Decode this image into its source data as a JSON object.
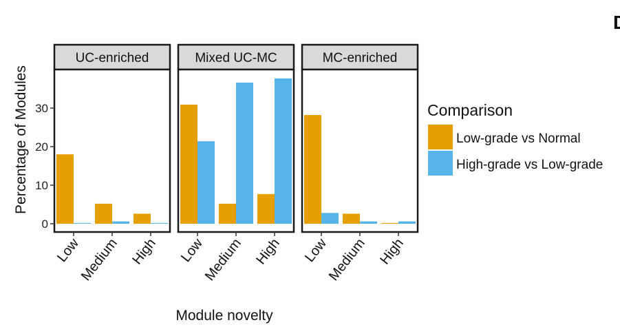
{
  "panel_letter": "D",
  "chart_data": {
    "type": "bar",
    "xlabel": "Module novelty",
    "ylabel": "Percentage of Modules",
    "ylim": [
      0,
      40
    ],
    "yticks": [
      0,
      10,
      20,
      30
    ],
    "categories": [
      "Low",
      "Medium",
      "High"
    ],
    "legend": {
      "title": "Comparison",
      "placement": "right",
      "entries": [
        "Low-grade vs Normal",
        "High-grade vs Low-grade"
      ]
    },
    "colors": [
      "#E69F00",
      "#56B4E9"
    ],
    "facets": [
      {
        "label": "UC-enriched",
        "series": [
          {
            "name": "Low-grade vs Normal",
            "values": [
              18,
              5.2,
              2.6
            ]
          },
          {
            "name": "High-grade vs Low-grade",
            "values": [
              0.2,
              0.6,
              0.2
            ]
          }
        ]
      },
      {
        "label": "Mixed UC-MC",
        "series": [
          {
            "name": "Low-grade vs Normal",
            "values": [
              30.9,
              5.2,
              7.7
            ]
          },
          {
            "name": "High-grade vs Low-grade",
            "values": [
              21.4,
              36.6,
              37.7
            ]
          }
        ]
      },
      {
        "label": "MC-enriched",
        "series": [
          {
            "name": "Low-grade vs Normal",
            "values": [
              28.2,
              2.6,
              0.2
            ]
          },
          {
            "name": "High-grade vs Low-grade",
            "values": [
              2.8,
              0.6,
              0.6
            ]
          }
        ]
      }
    ]
  }
}
